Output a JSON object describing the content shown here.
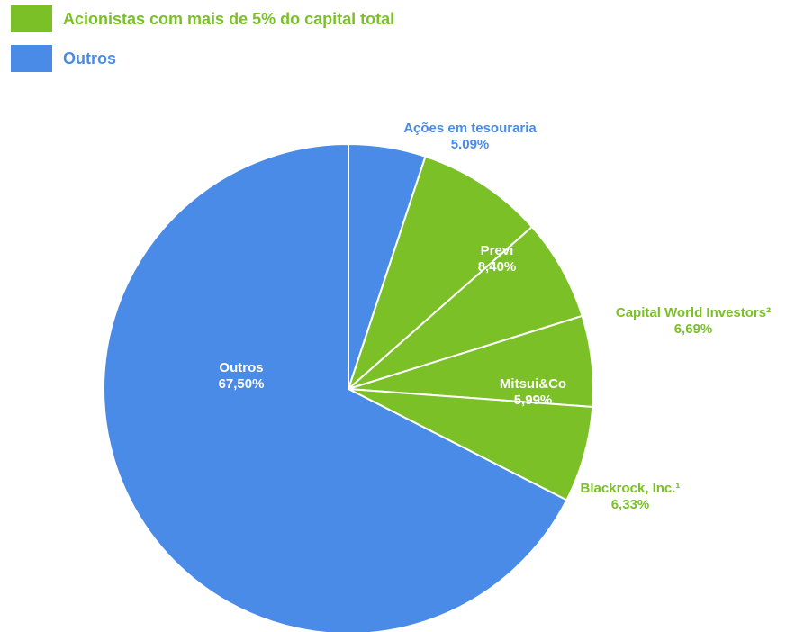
{
  "legend": [
    {
      "label": "Acionistas com mais de 5% do capital total",
      "color": "#7ac026"
    },
    {
      "label": "Outros",
      "color": "#4a8be8"
    }
  ],
  "chart_data": {
    "type": "pie",
    "slices": [
      {
        "label": "Ações em tesouraria",
        "value_text": "5.09%",
        "value": 5.09,
        "group": "Outros",
        "color": "#4a8be8",
        "label_color": "#4a8be8",
        "label_position": "outside"
      },
      {
        "label": "Previ",
        "value_text": "8,40%",
        "value": 8.4,
        "group": "Acionistas com mais de 5% do capital total",
        "color": "#7ac026",
        "label_color": "#ffffff",
        "label_position": "inside"
      },
      {
        "label": "Capital World Investors²",
        "value_text": "6,69%",
        "value": 6.69,
        "group": "Acionistas com mais de 5% do capital total",
        "color": "#7ac026",
        "label_color": "#7ac026",
        "label_position": "outside"
      },
      {
        "label": "Mitsui&Co",
        "value_text": "5,99%",
        "value": 5.99,
        "group": "Acionistas com mais de 5% do capital total",
        "color": "#7ac026",
        "label_color": "#ffffff",
        "label_position": "inside"
      },
      {
        "label": "Blackrock, Inc.¹",
        "value_text": "6,33%",
        "value": 6.33,
        "group": "Acionistas com mais de 5% do capital total",
        "color": "#7ac026",
        "label_color": "#7ac026",
        "label_position": "outside"
      },
      {
        "label": "Outros",
        "value_text": "67,50%",
        "value": 67.5,
        "group": "Outros",
        "color": "#4a8be8",
        "label_color": "#ffffff",
        "label_position": "inside"
      }
    ],
    "start": "top, clockwise",
    "legend_position": "top-left"
  }
}
